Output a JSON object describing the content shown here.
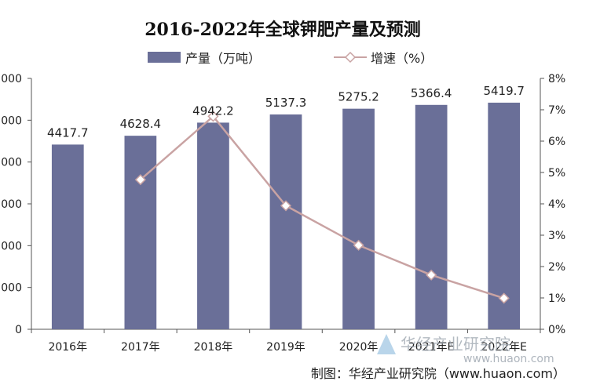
{
  "chart_data": {
    "type": "bar",
    "title": "2016-2022年全球钾肥产量及预测",
    "categories": [
      "2016年",
      "2017年",
      "2018年",
      "2019年",
      "2020年",
      "2021年E",
      "2022年E"
    ],
    "series": [
      {
        "name": "产量（万吨）",
        "type": "bar",
        "axis": "left",
        "color": "#6a6f98",
        "values": [
          4417.7,
          4628.4,
          4942.2,
          5137.3,
          5275.2,
          5366.4,
          5419.7
        ],
        "labels": [
          "4417.7",
          "4628.4",
          "4942.2",
          "5137.3",
          "5275.2",
          "5366.4",
          "5419.7"
        ]
      },
      {
        "name": "增速（%）",
        "type": "line",
        "axis": "right",
        "color": "#c9a3a3",
        "values": [
          null,
          4.77,
          6.79,
          3.94,
          2.68,
          1.73,
          0.99
        ]
      }
    ],
    "y_left": {
      "min": 0,
      "max": 6000,
      "step": 1000,
      "ticks": [
        "0",
        "000",
        "000",
        "000",
        "000",
        "000",
        "000"
      ]
    },
    "y_right": {
      "min": 0,
      "max": 8,
      "step": 1,
      "ticks": [
        "0%",
        "1%",
        "2%",
        "3%",
        "4%",
        "5%",
        "6%",
        "7%",
        "8%"
      ]
    },
    "legend": "top-center",
    "grid": false
  },
  "source_text": "制图：华经产业研究院（www.huaon.com）",
  "watermark": {
    "name": "华经产业研究院",
    "url": "www.huaon.com"
  }
}
